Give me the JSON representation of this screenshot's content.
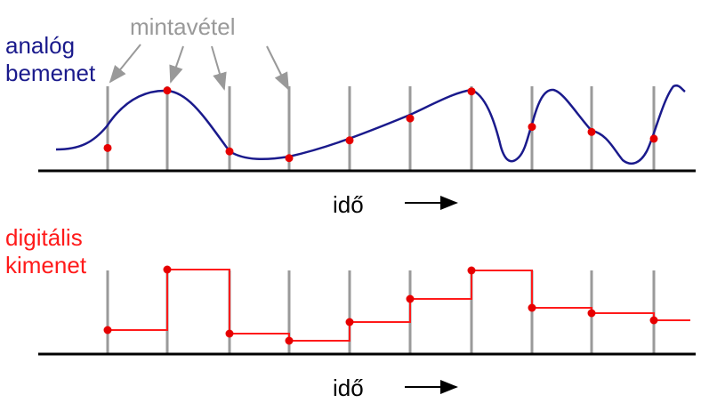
{
  "labels": {
    "analog_line1": "analóg",
    "analog_line2": "bemenet",
    "sampling": "mintavétel",
    "time_top": "idő",
    "digital_line1": "digitális",
    "digital_line2": "kimenet",
    "time_bottom": "idő"
  },
  "colors": {
    "analog": "#1a1a8c",
    "digital": "#ff1a1a",
    "sample_point": "#e60000",
    "sample_line": "#9a9a9a",
    "sampling_label": "#999999",
    "axis": "#000000"
  },
  "sample_levels": [
    0.27,
    0.95,
    0.23,
    0.15,
    0.36,
    0.62,
    0.94,
    0.52,
    0.46,
    0.38
  ]
}
